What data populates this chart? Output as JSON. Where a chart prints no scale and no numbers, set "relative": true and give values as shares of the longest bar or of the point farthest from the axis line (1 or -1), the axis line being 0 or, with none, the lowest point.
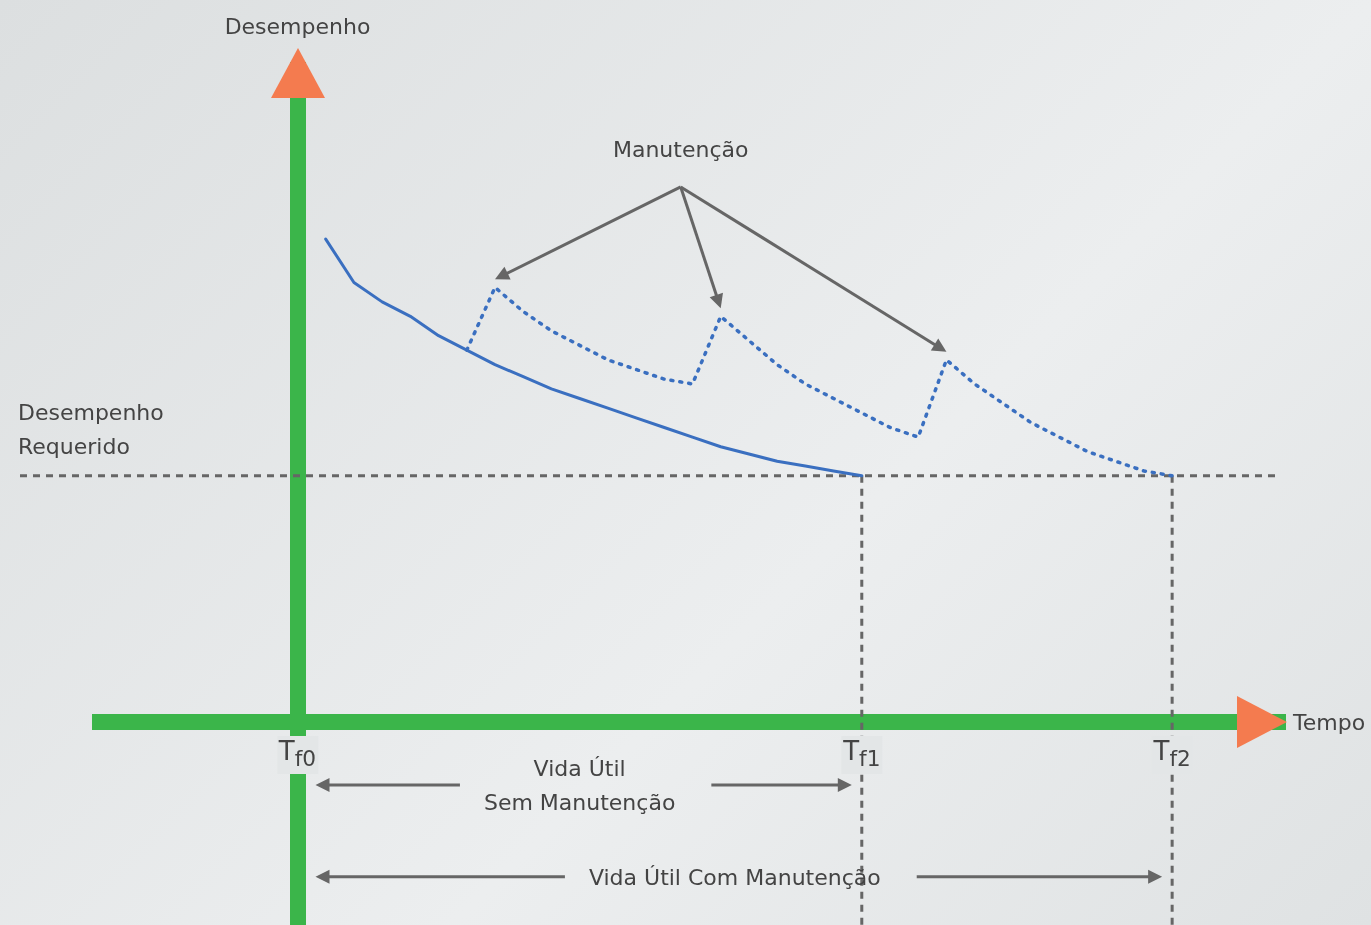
{
  "chart_data": {
    "type": "line",
    "relative": true,
    "xlabel": "Tempo",
    "categories": [
      null,
      null,
      null,
      null,
      null,
      null,
      null,
      "T$_{f0}$",
      null,
      null,
      null,
      null,
      null,
      null,
      null,
      null,
      null,
      null,
      null,
      null,
      null,
      null,
      null,
      null,
      null,
      null,
      null,
      "T$_{f1}$",
      null,
      null,
      null,
      null,
      null,
      null,
      null,
      null,
      null,
      null,
      "T$_{f2}$",
      null,
      null,
      null,
      null
    ],
    "series": [
      {
        "color": "#3a6fc0",
        "line_style": "solid",
        "values": [
          null,
          null,
          null,
          null,
          null,
          null,
          null,
          null,
          1,
          0.91,
          0.87,
          0.84,
          0.8,
          0.77,
          0.74,
          0.715,
          0.69,
          0.67,
          0.65,
          0.63,
          0.61,
          0.59,
          0.57,
          0.555,
          0.54,
          0.53,
          0.52,
          0.51,
          null,
          null,
          null,
          null,
          null,
          null,
          null,
          null,
          null,
          null,
          null,
          null,
          null,
          null,
          null
        ]
      },
      {
        "color": "#3a6fc0",
        "line_style": "dotted",
        "values": [
          null,
          null,
          null,
          null,
          null,
          null,
          null,
          null,
          null,
          null,
          null,
          null,
          null,
          0.77,
          0.9,
          0.85,
          0.81,
          0.78,
          0.75,
          0.73,
          0.71,
          0.7,
          0.84,
          0.79,
          0.74,
          0.7,
          0.67,
          0.64,
          0.61,
          0.59,
          0.75,
          0.7,
          0.66,
          0.62,
          0.59,
          0.56,
          0.54,
          0.52,
          0.51,
          null,
          null,
          null,
          null
        ]
      }
    ],
    "ref_lines": [
      {
        "axis": "y",
        "value": 0.51,
        "label": "Desempenho Requerido",
        "line_style": "dashed",
        "color": "#666666"
      },
      {
        "axis": "x",
        "value": "T$_{f1}$",
        "line_style": "dashed",
        "color": "#666666"
      },
      {
        "axis": "x",
        "value": "T$_{f2}$",
        "line_style": "dashed",
        "color": "#666666"
      }
    ],
    "annotations": [
      "Manutenção",
      "Vida Útil\nSem Manutenção",
      "Vida Útil Com Manutenção",
      "Desempenho"
    ]
  }
}
